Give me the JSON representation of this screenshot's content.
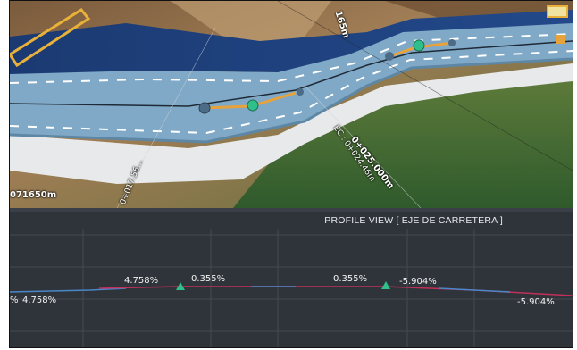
{
  "viewport": {
    "label_left_station": "071650m",
    "label_top_station": "165m",
    "label_vertical_mid": "0+017.56...",
    "label_vertical_right": "0+025.000m",
    "label_ec": "EC : 0+024.46m"
  },
  "profile": {
    "title": "PROFILE VIEW [ EJE DE CARRETERA ]",
    "grades": {
      "left_edge": "%",
      "g1": "4.758%",
      "g1_upper": "4.758%",
      "g2": "0.355%",
      "g3": "0.355%",
      "g4": "-5.904%",
      "g4_lower": "-5.904%"
    }
  },
  "colors": {
    "road": "#7fa9c7",
    "water": "#1d3f79",
    "alignment": "#e8a23a",
    "pvi": "#2fbf8a",
    "profile_line_red": "#c0305a",
    "profile_line_blue": "#4a86c8",
    "grid": "#444a52"
  }
}
